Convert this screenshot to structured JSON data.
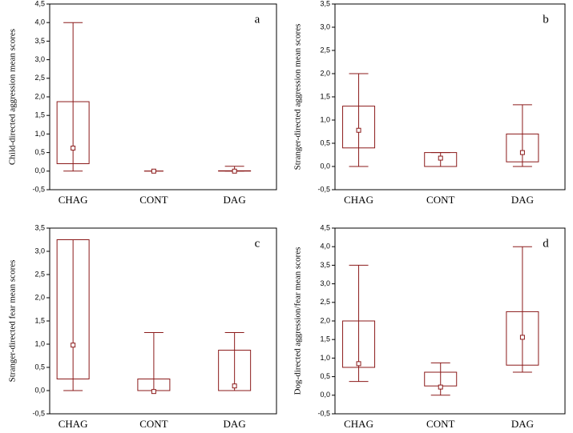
{
  "chart_data": [
    {
      "type": "box",
      "label": "a",
      "y_label": "Child-directed  aggression mean scores",
      "color": "#8b1a1a",
      "categories": [
        "CHAG",
        "CONT",
        "DAG"
      ],
      "whisker_low": [
        0,
        0,
        0
      ],
      "box_low": [
        0.2,
        0,
        0
      ],
      "center": [
        0.62,
        0,
        0
      ],
      "box_high": [
        1.87,
        0,
        0.01
      ],
      "whisker_high": [
        4.0,
        0,
        0.13
      ],
      "ylim": [
        -0.5,
        4.5
      ],
      "yticks": [
        {
          "value": -0.5,
          "label": "-0,5"
        },
        {
          "value": 0,
          "label": "0,0"
        },
        {
          "value": 0.5,
          "label": "0,5"
        },
        {
          "value": 1,
          "label": "1,0"
        },
        {
          "value": 1.5,
          "label": "1,5"
        },
        {
          "value": 2,
          "label": "2,0"
        },
        {
          "value": 2.5,
          "label": "2,5"
        },
        {
          "value": 3,
          "label": "3,0"
        },
        {
          "value": 3.5,
          "label": "3,5"
        },
        {
          "value": 4,
          "label": "4,0"
        },
        {
          "value": 4.5,
          "label": "4,5"
        }
      ]
    },
    {
      "type": "box",
      "label": "b",
      "y_label": "Stranger-directed aggression mean scores",
      "color": "#8b1a1a",
      "categories": [
        "CHAG",
        "CONT",
        "DAG"
      ],
      "whisker_low": [
        0,
        0,
        0
      ],
      "box_low": [
        0.4,
        0,
        0.1
      ],
      "center": [
        0.78,
        0.18,
        0.3
      ],
      "box_high": [
        1.3,
        0.3,
        0.7
      ],
      "whisker_high": [
        2.0,
        0.3,
        1.33
      ],
      "ylim": [
        -0.5,
        3.5
      ],
      "yticks": [
        {
          "value": -0.5,
          "label": "-0,5"
        },
        {
          "value": 0,
          "label": "0,0"
        },
        {
          "value": 0.5,
          "label": "0,5"
        },
        {
          "value": 1,
          "label": "1,0"
        },
        {
          "value": 1.5,
          "label": "1,5"
        },
        {
          "value": 2,
          "label": "2,0"
        },
        {
          "value": 2.5,
          "label": "2,5"
        },
        {
          "value": 3,
          "label": "3,0"
        },
        {
          "value": 3.5,
          "label": "3,5"
        }
      ]
    },
    {
      "type": "box",
      "label": "c",
      "y_label": "Stranger-directed  fear mean scores",
      "color": "#8b1a1a",
      "categories": [
        "CHAG",
        "CONT",
        "DAG"
      ],
      "whisker_low": [
        0,
        0,
        0
      ],
      "box_low": [
        0.25,
        0,
        0
      ],
      "center": [
        0.98,
        -0.02,
        0.1
      ],
      "box_high": [
        3.25,
        0.25,
        0.87
      ],
      "whisker_high": [
        3.25,
        1.25,
        1.25
      ],
      "ylim": [
        -0.5,
        3.5
      ],
      "yticks": [
        {
          "value": -0.5,
          "label": "-0,5"
        },
        {
          "value": 0,
          "label": "0,0"
        },
        {
          "value": 0.5,
          "label": "0,5"
        },
        {
          "value": 1,
          "label": "1,0"
        },
        {
          "value": 1.5,
          "label": "1,5"
        },
        {
          "value": 2,
          "label": "2,0"
        },
        {
          "value": 2.5,
          "label": "2,5"
        },
        {
          "value": 3,
          "label": "3,0"
        },
        {
          "value": 3.5,
          "label": "3,5"
        }
      ]
    },
    {
      "type": "box",
      "label": "d",
      "y_label": "Dog-directed aggression/fear mean scores",
      "color": "#8b1a1a",
      "categories": [
        "CHAG",
        "CONT",
        "DAG"
      ],
      "whisker_low": [
        0.37,
        0,
        0.62
      ],
      "box_low": [
        0.75,
        0.25,
        0.81
      ],
      "center": [
        0.85,
        0.22,
        1.56
      ],
      "box_high": [
        2.0,
        0.62,
        2.25
      ],
      "whisker_high": [
        3.5,
        0.87,
        4.0
      ],
      "ylim": [
        -0.5,
        4.5
      ],
      "yticks": [
        {
          "value": -0.5,
          "label": "-0,5"
        },
        {
          "value": 0,
          "label": "0,0"
        },
        {
          "value": 0.5,
          "label": "0,5"
        },
        {
          "value": 1,
          "label": "1,0"
        },
        {
          "value": 1.5,
          "label": "1,5"
        },
        {
          "value": 2,
          "label": "2,0"
        },
        {
          "value": 2.5,
          "label": "2,5"
        },
        {
          "value": 3,
          "label": "3,0"
        },
        {
          "value": 3.5,
          "label": "3,5"
        },
        {
          "value": 4,
          "label": "4,0"
        },
        {
          "value": 4.5,
          "label": "4,5"
        }
      ]
    }
  ]
}
